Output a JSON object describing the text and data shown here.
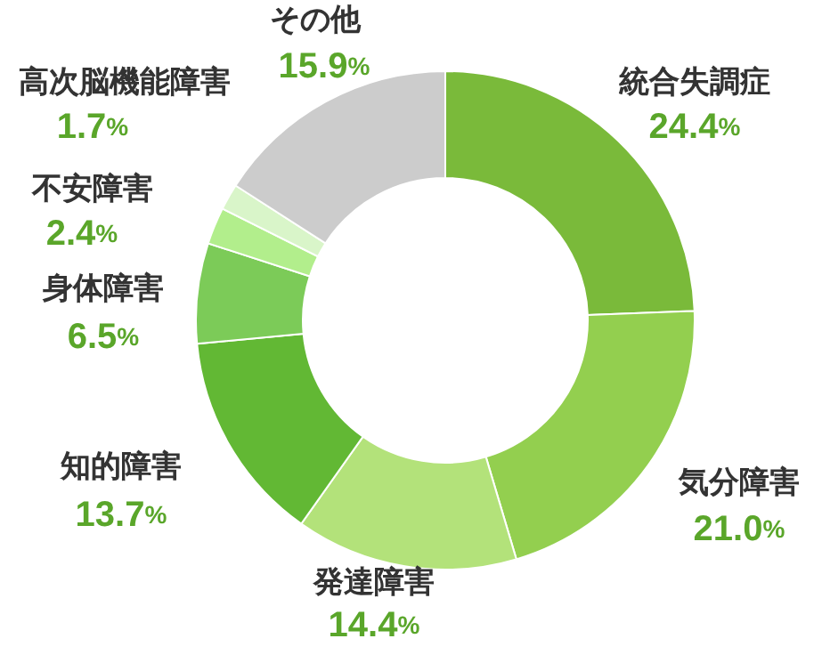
{
  "chart_data": {
    "type": "donut",
    "categories": [
      "統合失調症",
      "気分障害",
      "発達障害",
      "知的障害",
      "身体障害",
      "不安障害",
      "高次脳機能障害",
      "その他"
    ],
    "values": [
      24.4,
      21.0,
      14.4,
      13.7,
      6.5,
      2.4,
      1.7,
      15.9
    ],
    "value_labels": [
      "24.4%",
      "21.0%",
      "14.4%",
      "13.7%",
      "6.5%",
      "2.4%",
      "1.7%",
      "15.9%"
    ],
    "colors": [
      "#7aba3a",
      "#93cf4f",
      "#b3e27a",
      "#62b834",
      "#7ccb58",
      "#b2ee8c",
      "#d9f5c9",
      "#cccccc"
    ],
    "legend": false
  }
}
